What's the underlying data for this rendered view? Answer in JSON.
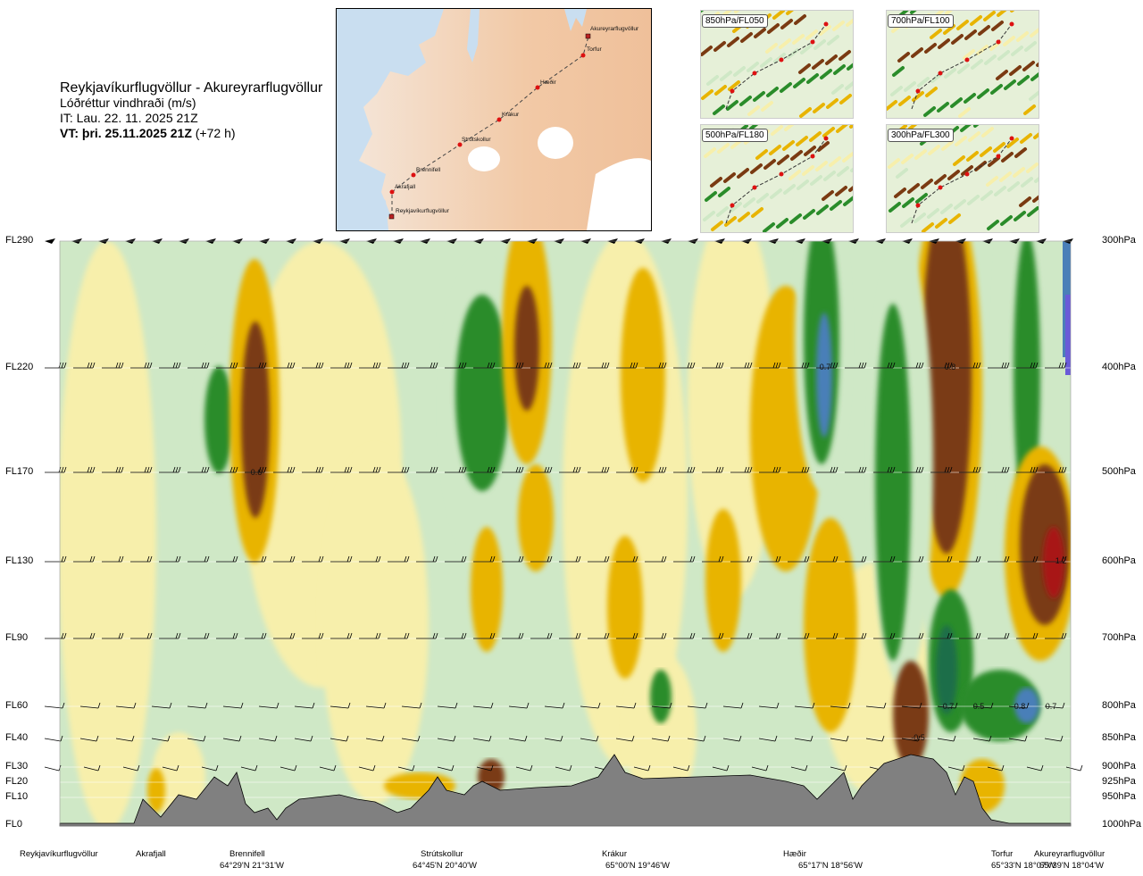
{
  "header": {
    "title": "Reykjavíkurflugvöllur - Akureyrarflugvöllur",
    "subtitle": "Lóðréttur vindhraði (m/s)",
    "issue_time": "IT: Lau. 22. 11. 2025 21Z",
    "valid_time": "VT: þri. 25.11.2025 21Z",
    "valid_offset": " (+72 h)"
  },
  "route_map": {
    "points": [
      "Akureyrarflugvöllur",
      "Torfur",
      "Hæðir",
      "Krákur",
      "Strútskollur",
      "Brennifell",
      "Akrafjall",
      "Reykjavíkurflugvöllur"
    ]
  },
  "thumbnails": [
    {
      "label": "850hPa/FL050"
    },
    {
      "label": "700hPa/FL100"
    },
    {
      "label": "500hPa/FL180"
    },
    {
      "label": "300hPa/FL300"
    }
  ],
  "colors": {
    "terrain": "#808080",
    "strong_up": "#7a3a12",
    "up": "#e8b400",
    "weak_up": "#f7efab",
    "weak_down": "#cfe8c6",
    "down": "#2a8c2a",
    "strong_down": "#4a7fb8",
    "extreme_down": "#6a5ad8"
  },
  "chart_data": {
    "type": "heatmap",
    "title": "Lóðréttur vindhraði (m/s)",
    "levels": [
      {
        "fl": "FL290",
        "p": "300hPa"
      },
      {
        "fl": "FL220",
        "p": "400hPa"
      },
      {
        "fl": "FL170",
        "p": "500hPa"
      },
      {
        "fl": "FL130",
        "p": "600hPa"
      },
      {
        "fl": "FL90",
        "p": "700hPa"
      },
      {
        "fl": "FL60",
        "p": "800hPa"
      },
      {
        "fl": "FL40",
        "p": "850hPa"
      },
      {
        "fl": "FL30",
        "p": "900hPa"
      },
      {
        "fl": "FL20",
        "p": "925hPa"
      },
      {
        "fl": "FL10",
        "p": "950hPa"
      },
      {
        "fl": "FL0",
        "p": "1000hPa"
      }
    ],
    "locations": [
      {
        "name": "Reykjavíkurflugvöllur",
        "coord": ""
      },
      {
        "name": "Akrafjall",
        "coord": ""
      },
      {
        "name": "Brennifell",
        "coord": "64°29'N 21°31'W"
      },
      {
        "name": "Strútskollur",
        "coord": "64°45'N 20°40'W"
      },
      {
        "name": "Krákur",
        "coord": "65°00'N 19°46'W"
      },
      {
        "name": "Hæðir",
        "coord": "65°17'N 18°56'W"
      },
      {
        "name": "Torfur",
        "coord": "65°33'N 18°07'W"
      },
      {
        "name": "Akureyrarflugvöllur",
        "coord": "65°39'N 18°04'W"
      }
    ],
    "annotations": [
      "0.6",
      "0.7",
      "0.8",
      "1.2",
      "0.7",
      "0.5",
      "0.8",
      "0.7",
      "-0.5"
    ]
  }
}
